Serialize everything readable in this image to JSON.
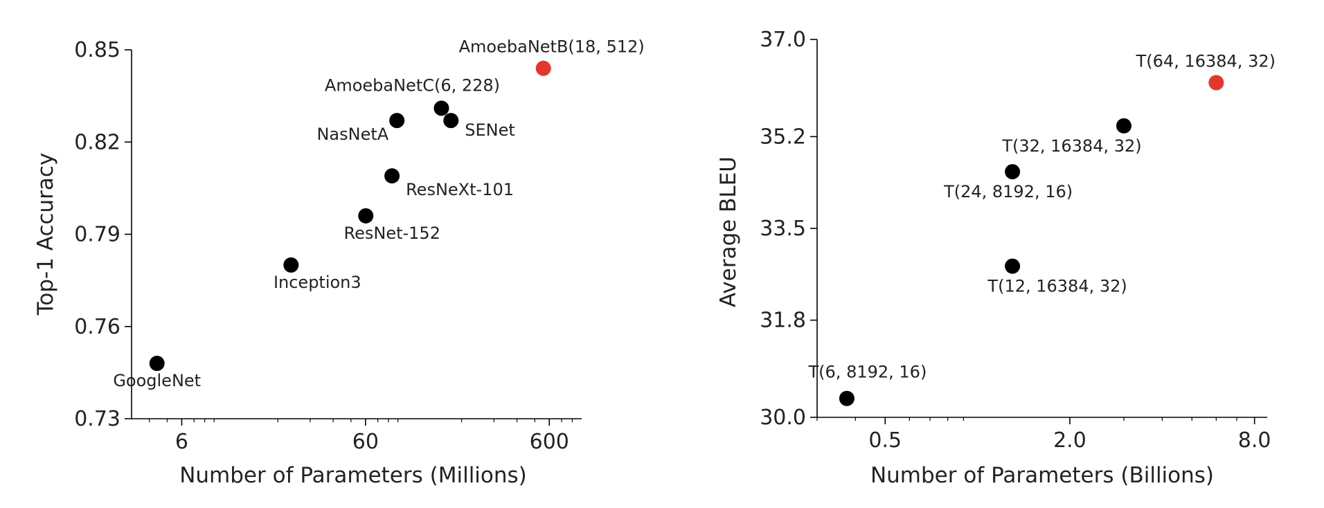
{
  "colors": {
    "default_point": "#000000",
    "highlight_point": "#e8352b"
  },
  "chart_data": [
    {
      "type": "scatter",
      "xlabel": "Number of Parameters (Millions)",
      "ylabel": "Top-1 Accuracy",
      "xscale": "log",
      "xlim": [
        3.2,
        900
      ],
      "ylim": [
        0.73,
        0.85
      ],
      "xticks": [
        6,
        60,
        600
      ],
      "xtick_labels": [
        "6",
        "60",
        "600"
      ],
      "yticks": [
        0.73,
        0.76,
        0.79,
        0.82,
        0.85
      ],
      "ytick_labels": [
        "0.73",
        "0.76",
        "0.79",
        "0.82",
        "0.85"
      ],
      "grid": false,
      "points": [
        {
          "label": "GoogleNet",
          "x": 4.4,
          "y": 0.748,
          "highlight": false
        },
        {
          "label": "Inception3",
          "x": 23.6,
          "y": 0.78,
          "highlight": false
        },
        {
          "label": "ResNet-152",
          "x": 60.2,
          "y": 0.796,
          "highlight": false
        },
        {
          "label": "ResNeXt-101",
          "x": 83.6,
          "y": 0.809,
          "highlight": false
        },
        {
          "label": "NasNetA",
          "x": 88.9,
          "y": 0.827,
          "highlight": false
        },
        {
          "label": "AmoebaNetC(6, 228)",
          "x": 155.3,
          "y": 0.831,
          "highlight": false
        },
        {
          "label": "SENet",
          "x": 175.0,
          "y": 0.827,
          "highlight": false
        },
        {
          "label": "AmoebaNetB(18, 512)",
          "x": 557.0,
          "y": 0.844,
          "highlight": true
        }
      ]
    },
    {
      "type": "scatter",
      "xlabel": "Number of Parameters (Billions)",
      "ylabel": "Average BLEU",
      "xscale": "log",
      "xlim": [
        0.3,
        8.8
      ],
      "ylim": [
        30.0,
        37.0
      ],
      "xticks": [
        0.5,
        2.0,
        8.0
      ],
      "xtick_labels": [
        "0.5",
        "2.0",
        "8.0"
      ],
      "yticks": [
        30.0,
        31.8,
        33.5,
        35.2,
        37.0
      ],
      "ytick_labels": [
        "30.0",
        "31.8",
        "33.5",
        "35.2",
        "37.0"
      ],
      "grid": false,
      "points": [
        {
          "label": "T(6, 8192, 16)",
          "x": 0.375,
          "y": 30.35,
          "highlight": false
        },
        {
          "label": "T(12, 16384, 32)",
          "x": 1.3,
          "y": 32.8,
          "highlight": false
        },
        {
          "label": "T(24, 8192, 16)",
          "x": 1.3,
          "y": 34.55,
          "highlight": false
        },
        {
          "label": "T(32, 16384, 32)",
          "x": 3.0,
          "y": 35.4,
          "highlight": false
        },
        {
          "label": "T(64, 16384, 32)",
          "x": 6.0,
          "y": 36.2,
          "highlight": true
        }
      ]
    }
  ]
}
